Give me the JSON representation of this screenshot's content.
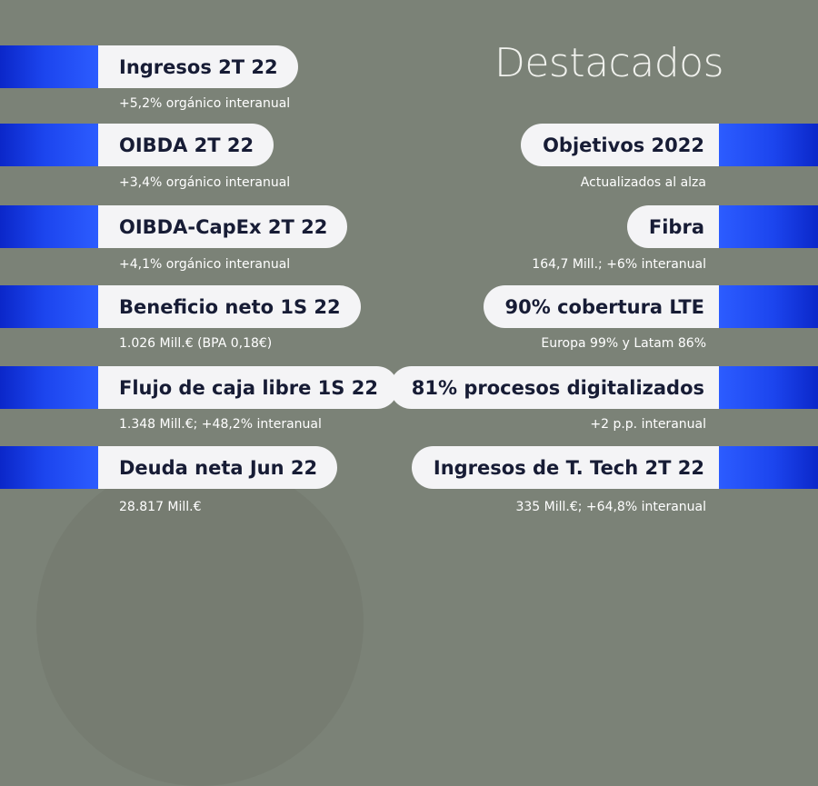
{
  "title": "Destacados",
  "colors": {
    "background": "#7b8277",
    "accent_blue": "#1c45ee",
    "pill": "#f4f4f6",
    "pill_text": "#171c35"
  },
  "left": [
    {
      "label": "Ingresos 2T 22",
      "detail": "+5,2% orgánico interanual"
    },
    {
      "label": "OIBDA 2T 22",
      "detail": "+3,4% orgánico interanual"
    },
    {
      "label": "OIBDA-CapEx 2T 22",
      "detail": "+4,1% orgánico interanual"
    },
    {
      "label": "Beneficio neto 1S 22",
      "detail": "1.026 Mill.€ (BPA 0,18€)"
    },
    {
      "label": "Flujo de caja libre 1S 22",
      "detail": "1.348 Mill.€; +48,2% interanual"
    },
    {
      "label": "Deuda neta Jun 22",
      "detail": "28.817 Mill.€"
    }
  ],
  "right": [
    {
      "label": "Objetivos 2022",
      "detail": "Actualizados al alza"
    },
    {
      "label": "Fibra",
      "detail": "164,7 Mill.; +6% interanual"
    },
    {
      "label": "90% cobertura LTE",
      "detail": "Europa 99% y Latam 86%"
    },
    {
      "label": "81% procesos digitalizados",
      "detail": "+2 p.p. interanual"
    },
    {
      "label": "Ingresos de T. Tech 2T 22",
      "detail": "335 Mill.€; +64,8% interanual"
    }
  ]
}
